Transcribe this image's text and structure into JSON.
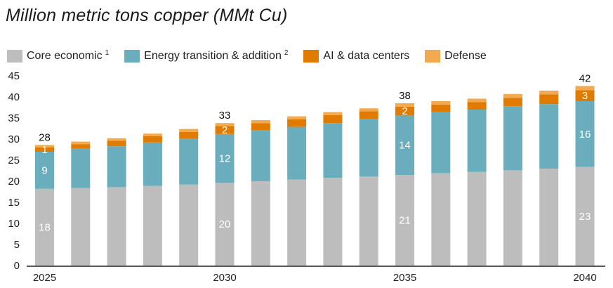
{
  "title": "Million metric tons copper (MMt Cu)",
  "colors": {
    "core": "#bdbdbd",
    "energy": "#6aaebd",
    "ai": "#e07b00",
    "defense": "#f2a94f",
    "axis": "#222222"
  },
  "legend": [
    {
      "key": "core",
      "label": "Core economic",
      "sup": "1"
    },
    {
      "key": "energy",
      "label": "Energy transition & addition",
      "sup": "2"
    },
    {
      "key": "ai",
      "label": "AI & data centers",
      "sup": ""
    },
    {
      "key": "defense",
      "label": "Defense",
      "sup": ""
    }
  ],
  "chart_data": {
    "type": "bar",
    "stacked": true,
    "title": "Million metric tons copper (MMt Cu)",
    "x": [
      2025,
      2026,
      2027,
      2028,
      2029,
      2030,
      2031,
      2032,
      2033,
      2034,
      2035,
      2036,
      2037,
      2038,
      2039,
      2040
    ],
    "x_tick_labels": [
      "2025",
      "2030",
      "2035",
      "2040"
    ],
    "x_tick_years": [
      2025,
      2030,
      2035,
      2040
    ],
    "ylim": [
      0,
      45
    ],
    "y_ticks": [
      0,
      5,
      10,
      15,
      20,
      25,
      30,
      35,
      40,
      45
    ],
    "series": [
      {
        "key": "core",
        "name": "Core economic",
        "values": [
          18.2,
          18.4,
          18.6,
          18.9,
          19.2,
          19.6,
          20.0,
          20.4,
          20.8,
          21.1,
          21.5,
          21.9,
          22.2,
          22.6,
          23.0,
          23.4
        ]
      },
      {
        "key": "energy",
        "name": "Energy transition & addition",
        "values": [
          8.8,
          9.3,
          9.7,
          10.3,
          10.9,
          11.6,
          12.1,
          12.5,
          13.0,
          13.6,
          14.1,
          14.6,
          14.8,
          15.2,
          15.3,
          15.6
        ]
      },
      {
        "key": "ai",
        "name": "AI & data centers",
        "values": [
          1.0,
          1.1,
          1.3,
          1.5,
          1.6,
          1.9,
          1.7,
          1.8,
          1.9,
          1.9,
          2.1,
          1.7,
          1.8,
          2.0,
          2.3,
          2.6
        ]
      },
      {
        "key": "defense",
        "name": "Defense",
        "values": [
          0.6,
          0.6,
          0.6,
          0.6,
          0.7,
          0.7,
          0.7,
          0.7,
          0.7,
          0.7,
          0.8,
          0.8,
          0.8,
          0.9,
          0.9,
          1.0
        ]
      }
    ],
    "segment_labels": [
      {
        "year": 2025,
        "series": "core",
        "text": "18"
      },
      {
        "year": 2025,
        "series": "energy",
        "text": "9"
      },
      {
        "year": 2025,
        "series": "ai",
        "text": "1"
      },
      {
        "year": 2030,
        "series": "core",
        "text": "20"
      },
      {
        "year": 2030,
        "series": "energy",
        "text": "12"
      },
      {
        "year": 2030,
        "series": "ai",
        "text": "2"
      },
      {
        "year": 2035,
        "series": "core",
        "text": "21"
      },
      {
        "year": 2035,
        "series": "energy",
        "text": "14"
      },
      {
        "year": 2035,
        "series": "ai",
        "text": "2"
      },
      {
        "year": 2040,
        "series": "core",
        "text": "23"
      },
      {
        "year": 2040,
        "series": "energy",
        "text": "16"
      },
      {
        "year": 2040,
        "series": "ai",
        "text": "3"
      }
    ],
    "total_labels": [
      {
        "year": 2025,
        "text": "28"
      },
      {
        "year": 2030,
        "text": "33"
      },
      {
        "year": 2035,
        "text": "38"
      },
      {
        "year": 2040,
        "text": "42"
      }
    ]
  }
}
